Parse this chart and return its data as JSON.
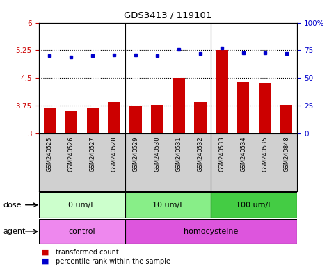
{
  "title": "GDS3413 / 119101",
  "samples": [
    "GSM240525",
    "GSM240526",
    "GSM240527",
    "GSM240528",
    "GSM240529",
    "GSM240530",
    "GSM240531",
    "GSM240532",
    "GSM240533",
    "GSM240534",
    "GSM240535",
    "GSM240848"
  ],
  "bar_values": [
    3.7,
    3.6,
    3.68,
    3.85,
    3.73,
    3.78,
    4.5,
    3.85,
    5.25,
    4.4,
    4.38,
    3.78
  ],
  "dot_values": [
    70,
    69,
    70,
    71,
    71,
    70,
    76,
    72,
    77,
    73,
    73,
    72
  ],
  "bar_color": "#cc0000",
  "dot_color": "#0000cc",
  "ylim_left": [
    3.0,
    6.0
  ],
  "ylim_right": [
    0,
    100
  ],
  "yticks_left": [
    3.0,
    3.75,
    4.5,
    5.25,
    6.0
  ],
  "ytick_labels_left": [
    "3",
    "3.75",
    "4.5",
    "5.25",
    "6"
  ],
  "yticks_right": [
    0,
    25,
    50,
    75,
    100
  ],
  "ytick_labels_right": [
    "0",
    "25",
    "50",
    "75",
    "100%"
  ],
  "hlines": [
    3.75,
    4.5,
    5.25
  ],
  "group_dividers": [
    4,
    8
  ],
  "dose_groups": [
    {
      "label": "0 um/L",
      "start": 0,
      "end": 4,
      "color": "#ccffcc"
    },
    {
      "label": "10 um/L",
      "start": 4,
      "end": 8,
      "color": "#88ee88"
    },
    {
      "label": "100 um/L",
      "start": 8,
      "end": 12,
      "color": "#44cc44"
    }
  ],
  "agent_groups": [
    {
      "label": "control",
      "start": 0,
      "end": 4,
      "color": "#ee88ee"
    },
    {
      "label": "homocysteine",
      "start": 4,
      "end": 12,
      "color": "#dd55dd"
    }
  ],
  "dose_label": "dose",
  "agent_label": "agent",
  "legend_bar": "transformed count",
  "legend_dot": "percentile rank within the sample",
  "background_color": "#ffffff",
  "plot_bg": "#ffffff",
  "label_bg": "#d0d0d0"
}
